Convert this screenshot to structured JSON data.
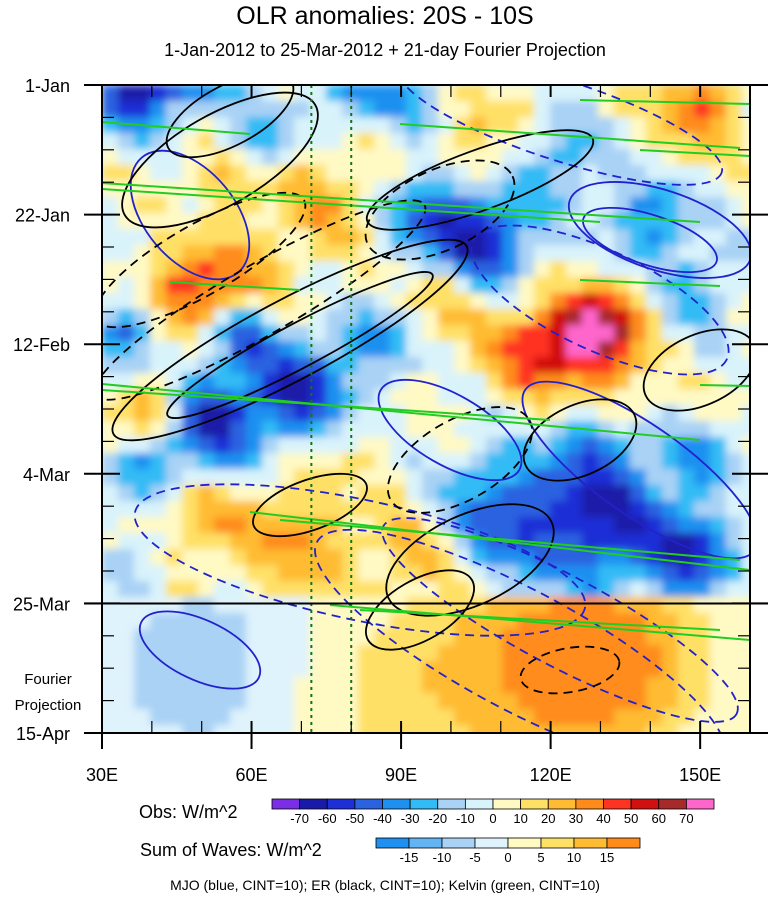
{
  "title": "OLR anomalies: 20S - 10S",
  "subtitle": "1-Jan-2012 to 25-Mar-2012 + 21-day Fourier Projection",
  "chart_data": {
    "type": "heatmap",
    "xlim": [
      30,
      160
    ],
    "x_ticks": [
      30,
      60,
      90,
      120,
      150
    ],
    "x_tick_labels": [
      "30E",
      "60E",
      "90E",
      "120E",
      "150E"
    ],
    "y_ticks_days": [
      0,
      21,
      42,
      63,
      84,
      105
    ],
    "y_tick_labels": [
      "1-Jan",
      "22-Jan",
      "12-Feb",
      "4-Mar",
      "25-Mar",
      "15-Apr"
    ],
    "projection_label": [
      "Fourier",
      "Projection"
    ],
    "projection_start_day": 84,
    "reference_lines_lon": [
      72,
      80
    ],
    "obs_colorbar": {
      "label": "Obs: W/m^2",
      "levels": [
        "-70",
        "-60",
        "-50",
        "-40",
        "-30",
        "-20",
        "-10",
        "0",
        "10",
        "20",
        "30",
        "40",
        "50",
        "60",
        "70"
      ],
      "colors": [
        "#7a2ee6",
        "#1a1aa8",
        "#1f2fd6",
        "#2b62e0",
        "#1e90f0",
        "#33bbf5",
        "#a9d2f5",
        "#d9f3fb",
        "#fff9c4",
        "#ffe066",
        "#ffbb33",
        "#ff8c1a",
        "#ff3322",
        "#d11010",
        "#a52a2a",
        "#ff66cc"
      ]
    },
    "waves_colorbar": {
      "label": "Sum of Waves: W/m^2",
      "levels": [
        "-15",
        "-10",
        "-5",
        "0",
        "5",
        "10",
        "15"
      ],
      "colors": [
        "#1e90f0",
        "#62b4f2",
        "#a9d2f5",
        "#dff3fc",
        "#fff9c4",
        "#ffe066",
        "#ffbb33",
        "#ff8c1a"
      ]
    },
    "legend_text": "MJO (blue, CINT=10); ER (black, CINT=10); Kelvin (green, CINT=10)",
    "contour_colors": {
      "mjo": "#2222cc",
      "er": "#000000",
      "kelvin": "#22cc22"
    }
  }
}
